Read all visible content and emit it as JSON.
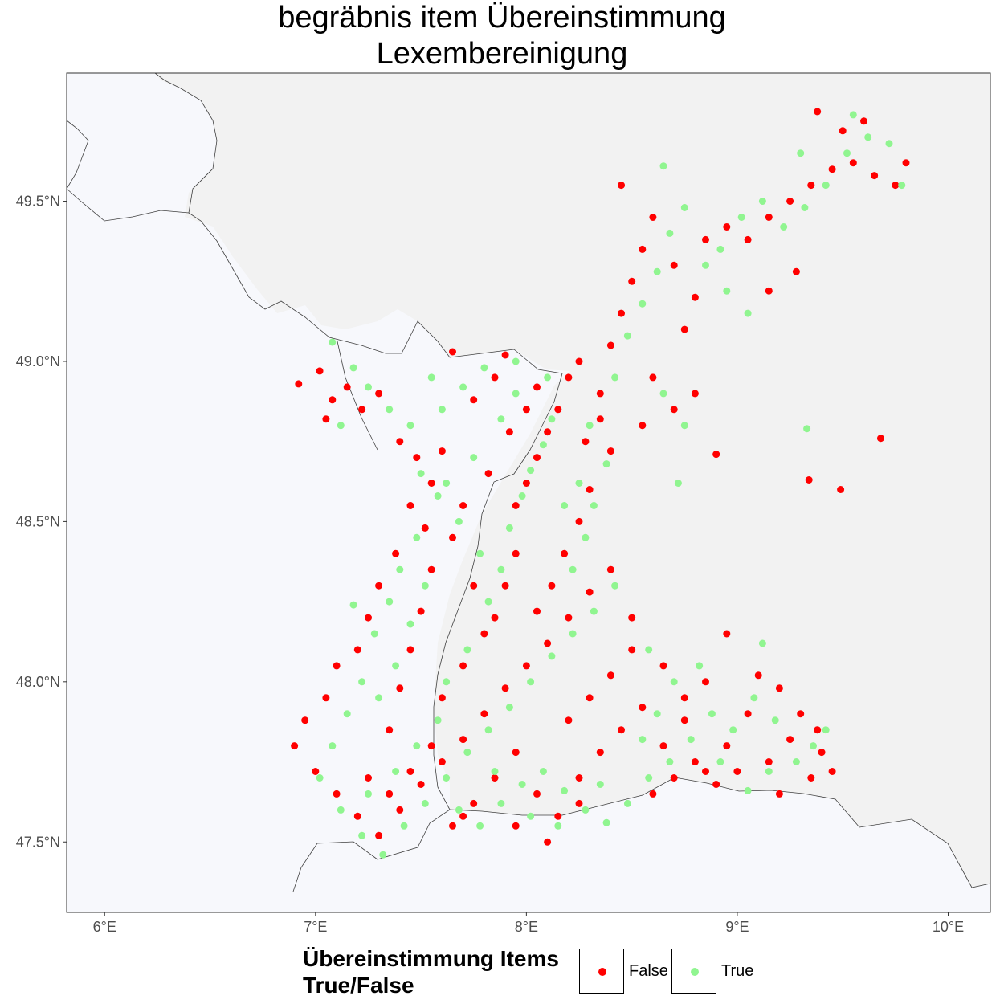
{
  "title_line1": "begräbnis item Übereinstimmung",
  "title_line2": "Lexembereinigung",
  "colors": {
    "sea_land": "#f7f8fc",
    "gray_area": "#f2f2f2",
    "border": "#404040",
    "false": "#ff0000",
    "true": "#90f590"
  },
  "legend": {
    "title_line1": "Übereinstimmung Items",
    "title_line2": "True/False",
    "false_label": "False",
    "true_label": "True"
  },
  "chart_data": {
    "type": "scatter",
    "xlim": [
      5.82,
      10.2
    ],
    "ylim": [
      47.28,
      49.9
    ],
    "x_ticks": [
      {
        "value": 6,
        "label": "6°E"
      },
      {
        "value": 7,
        "label": "7°E"
      },
      {
        "value": 8,
        "label": "8°E"
      },
      {
        "value": 9,
        "label": "9°E"
      },
      {
        "value": 10,
        "label": "10°E"
      }
    ],
    "y_ticks": [
      {
        "value": 47.5,
        "label": "47.5°N"
      },
      {
        "value": 48.0,
        "label": "48.0°N"
      },
      {
        "value": 48.5,
        "label": "48.5°N"
      },
      {
        "value": 49.0,
        "label": "49.0°N"
      },
      {
        "value": 49.5,
        "label": "49.5°N"
      }
    ],
    "series": [
      {
        "name": "False",
        "color": "#ff0000",
        "points": [
          [
            6.92,
            48.93
          ],
          [
            7.02,
            48.97
          ],
          [
            7.08,
            48.88
          ],
          [
            7.15,
            48.92
          ],
          [
            7.22,
            48.85
          ],
          [
            7.3,
            48.9
          ],
          [
            7.05,
            48.82
          ],
          [
            7.4,
            48.75
          ],
          [
            7.48,
            48.7
          ],
          [
            7.55,
            48.62
          ],
          [
            7.6,
            48.72
          ],
          [
            7.45,
            48.55
          ],
          [
            7.52,
            48.48
          ],
          [
            7.38,
            48.4
          ],
          [
            7.3,
            48.3
          ],
          [
            7.25,
            48.2
          ],
          [
            7.2,
            48.1
          ],
          [
            7.1,
            48.05
          ],
          [
            7.05,
            47.95
          ],
          [
            6.95,
            47.88
          ],
          [
            6.9,
            47.8
          ],
          [
            7.0,
            47.72
          ],
          [
            7.1,
            47.65
          ],
          [
            7.2,
            47.58
          ],
          [
            7.3,
            47.52
          ],
          [
            7.4,
            47.6
          ],
          [
            7.5,
            47.68
          ],
          [
            7.6,
            47.75
          ],
          [
            7.7,
            47.82
          ],
          [
            7.8,
            47.9
          ],
          [
            7.9,
            47.98
          ],
          [
            8.0,
            48.05
          ],
          [
            8.1,
            48.12
          ],
          [
            8.2,
            48.2
          ],
          [
            8.3,
            48.28
          ],
          [
            8.4,
            48.35
          ],
          [
            7.65,
            47.55
          ],
          [
            7.75,
            47.62
          ],
          [
            7.85,
            47.7
          ],
          [
            7.95,
            47.78
          ],
          [
            8.05,
            47.65
          ],
          [
            8.15,
            47.58
          ],
          [
            8.25,
            47.7
          ],
          [
            8.35,
            47.78
          ],
          [
            8.45,
            47.85
          ],
          [
            8.55,
            47.92
          ],
          [
            8.65,
            47.8
          ],
          [
            8.75,
            47.88
          ],
          [
            8.85,
            47.72
          ],
          [
            8.95,
            47.8
          ],
          [
            9.05,
            47.9
          ],
          [
            9.15,
            47.75
          ],
          [
            9.25,
            47.82
          ],
          [
            9.35,
            47.7
          ],
          [
            9.4,
            47.78
          ],
          [
            9.3,
            47.9
          ],
          [
            9.2,
            47.98
          ],
          [
            9.1,
            48.02
          ],
          [
            8.95,
            48.15
          ],
          [
            8.5,
            48.1
          ],
          [
            8.4,
            48.02
          ],
          [
            8.3,
            47.95
          ],
          [
            8.2,
            47.88
          ],
          [
            7.95,
            48.4
          ],
          [
            7.9,
            48.3
          ],
          [
            7.85,
            48.2
          ],
          [
            7.95,
            48.55
          ],
          [
            8.0,
            48.62
          ],
          [
            8.05,
            48.7
          ],
          [
            8.1,
            48.78
          ],
          [
            8.15,
            48.85
          ],
          [
            8.2,
            48.95
          ],
          [
            7.85,
            48.95
          ],
          [
            7.75,
            48.88
          ],
          [
            7.65,
            49.03
          ],
          [
            7.9,
            49.02
          ],
          [
            8.05,
            48.92
          ],
          [
            8.35,
            48.82
          ],
          [
            8.4,
            48.72
          ],
          [
            8.3,
            48.6
          ],
          [
            8.25,
            48.5
          ],
          [
            8.18,
            48.4
          ],
          [
            8.12,
            48.3
          ],
          [
            8.05,
            48.22
          ],
          [
            8.25,
            49.0
          ],
          [
            8.4,
            49.05
          ],
          [
            8.45,
            49.15
          ],
          [
            8.5,
            49.25
          ],
          [
            8.55,
            49.35
          ],
          [
            8.6,
            49.45
          ],
          [
            8.45,
            49.55
          ],
          [
            8.7,
            49.3
          ],
          [
            8.8,
            49.2
          ],
          [
            8.75,
            49.1
          ],
          [
            8.85,
            49.38
          ],
          [
            8.95,
            49.42
          ],
          [
            9.05,
            49.38
          ],
          [
            9.15,
            49.45
          ],
          [
            9.25,
            49.5
          ],
          [
            9.35,
            49.55
          ],
          [
            9.45,
            49.6
          ],
          [
            9.55,
            49.62
          ],
          [
            9.65,
            49.58
          ],
          [
            9.75,
            49.55
          ],
          [
            9.8,
            49.62
          ],
          [
            9.6,
            49.75
          ],
          [
            9.5,
            49.72
          ],
          [
            9.38,
            49.78
          ],
          [
            9.28,
            49.28
          ],
          [
            9.15,
            49.22
          ],
          [
            8.8,
            48.9
          ],
          [
            8.9,
            48.71
          ],
          [
            9.68,
            48.76
          ],
          [
            9.34,
            48.63
          ],
          [
            9.49,
            48.6
          ],
          [
            8.6,
            48.95
          ],
          [
            8.7,
            48.85
          ],
          [
            8.55,
            48.8
          ],
          [
            7.25,
            47.7
          ],
          [
            7.35,
            47.65
          ],
          [
            7.45,
            47.72
          ],
          [
            7.55,
            47.8
          ],
          [
            7.6,
            47.95
          ],
          [
            7.7,
            48.05
          ],
          [
            7.8,
            48.15
          ],
          [
            7.75,
            48.3
          ],
          [
            7.65,
            48.45
          ],
          [
            7.7,
            48.55
          ],
          [
            7.55,
            48.35
          ],
          [
            7.5,
            48.22
          ],
          [
            7.45,
            48.1
          ],
          [
            7.4,
            47.98
          ],
          [
            7.35,
            47.85
          ],
          [
            8.6,
            47.65
          ],
          [
            8.7,
            47.7
          ],
          [
            8.8,
            47.75
          ],
          [
            8.9,
            47.68
          ],
          [
            9.0,
            47.72
          ],
          [
            9.2,
            47.65
          ],
          [
            7.95,
            47.55
          ],
          [
            8.1,
            47.5
          ],
          [
            7.7,
            47.58
          ],
          [
            8.25,
            47.62
          ],
          [
            8.5,
            48.2
          ],
          [
            8.65,
            48.05
          ],
          [
            8.75,
            47.95
          ],
          [
            8.85,
            48.0
          ],
          [
            9.45,
            47.72
          ],
          [
            9.38,
            47.85
          ],
          [
            8.28,
            48.75
          ],
          [
            8.35,
            48.9
          ],
          [
            8.0,
            48.85
          ],
          [
            7.92,
            48.78
          ],
          [
            7.82,
            48.65
          ]
        ]
      },
      {
        "name": "True",
        "color": "#90f590",
        "points": [
          [
            7.08,
            49.06
          ],
          [
            7.18,
            48.98
          ],
          [
            7.25,
            48.92
          ],
          [
            7.12,
            48.8
          ],
          [
            7.35,
            48.85
          ],
          [
            7.45,
            48.8
          ],
          [
            7.5,
            48.65
          ],
          [
            7.58,
            48.58
          ],
          [
            7.48,
            48.45
          ],
          [
            7.4,
            48.35
          ],
          [
            7.35,
            48.25
          ],
          [
            7.28,
            48.15
          ],
          [
            7.22,
            48.0
          ],
          [
            7.15,
            47.9
          ],
          [
            7.08,
            47.8
          ],
          [
            7.02,
            47.7
          ],
          [
            7.12,
            47.6
          ],
          [
            7.22,
            47.52
          ],
          [
            7.32,
            47.46
          ],
          [
            7.42,
            47.55
          ],
          [
            7.52,
            47.62
          ],
          [
            7.62,
            47.7
          ],
          [
            7.72,
            47.78
          ],
          [
            7.82,
            47.85
          ],
          [
            7.92,
            47.92
          ],
          [
            8.02,
            48.0
          ],
          [
            8.12,
            48.08
          ],
          [
            8.22,
            48.15
          ],
          [
            8.32,
            48.22
          ],
          [
            8.42,
            48.3
          ],
          [
            7.68,
            47.6
          ],
          [
            7.78,
            47.55
          ],
          [
            7.88,
            47.62
          ],
          [
            7.98,
            47.68
          ],
          [
            8.08,
            47.72
          ],
          [
            8.18,
            47.66
          ],
          [
            8.28,
            47.6
          ],
          [
            8.38,
            47.56
          ],
          [
            8.48,
            47.62
          ],
          [
            8.58,
            47.7
          ],
          [
            8.68,
            47.75
          ],
          [
            8.78,
            47.82
          ],
          [
            8.88,
            47.9
          ],
          [
            8.98,
            47.85
          ],
          [
            9.08,
            47.95
          ],
          [
            9.18,
            47.88
          ],
          [
            9.28,
            47.75
          ],
          [
            9.36,
            47.8
          ],
          [
            9.12,
            48.12
          ],
          [
            7.88,
            48.35
          ],
          [
            7.82,
            48.25
          ],
          [
            7.92,
            48.48
          ],
          [
            7.98,
            48.58
          ],
          [
            8.02,
            48.66
          ],
          [
            8.08,
            48.74
          ],
          [
            8.12,
            48.82
          ],
          [
            7.8,
            48.98
          ],
          [
            7.7,
            48.92
          ],
          [
            7.6,
            48.85
          ],
          [
            7.55,
            48.95
          ],
          [
            7.95,
            49.0
          ],
          [
            8.1,
            48.95
          ],
          [
            8.3,
            48.8
          ],
          [
            8.38,
            48.68
          ],
          [
            8.32,
            48.55
          ],
          [
            8.28,
            48.45
          ],
          [
            8.22,
            48.35
          ],
          [
            8.42,
            48.95
          ],
          [
            8.48,
            49.08
          ],
          [
            8.55,
            49.18
          ],
          [
            8.62,
            49.28
          ],
          [
            8.68,
            49.4
          ],
          [
            8.65,
            49.61
          ],
          [
            8.75,
            49.48
          ],
          [
            8.85,
            49.3
          ],
          [
            8.92,
            49.35
          ],
          [
            9.02,
            49.45
          ],
          [
            9.12,
            49.5
          ],
          [
            9.22,
            49.42
          ],
          [
            9.32,
            49.48
          ],
          [
            9.42,
            49.55
          ],
          [
            9.52,
            49.65
          ],
          [
            9.62,
            49.7
          ],
          [
            9.72,
            49.68
          ],
          [
            9.78,
            49.55
          ],
          [
            9.55,
            49.77
          ],
          [
            9.3,
            49.65
          ],
          [
            9.05,
            49.15
          ],
          [
            8.95,
            49.22
          ],
          [
            8.75,
            48.8
          ],
          [
            8.72,
            48.62
          ],
          [
            9.33,
            48.79
          ],
          [
            8.65,
            48.9
          ],
          [
            7.18,
            48.24
          ],
          [
            7.25,
            47.65
          ],
          [
            7.38,
            47.72
          ],
          [
            7.48,
            47.8
          ],
          [
            7.58,
            47.88
          ],
          [
            7.62,
            48.0
          ],
          [
            7.72,
            48.1
          ],
          [
            7.78,
            48.4
          ],
          [
            7.68,
            48.5
          ],
          [
            7.62,
            48.62
          ],
          [
            7.52,
            48.3
          ],
          [
            7.45,
            48.18
          ],
          [
            7.38,
            48.05
          ],
          [
            7.3,
            47.95
          ],
          [
            8.55,
            47.82
          ],
          [
            8.62,
            47.9
          ],
          [
            8.92,
            47.75
          ],
          [
            9.05,
            47.66
          ],
          [
            9.15,
            47.72
          ],
          [
            8.02,
            47.58
          ],
          [
            8.15,
            47.55
          ],
          [
            7.85,
            47.72
          ],
          [
            8.35,
            47.68
          ],
          [
            8.58,
            48.1
          ],
          [
            8.7,
            48.0
          ],
          [
            8.82,
            48.05
          ],
          [
            9.42,
            47.85
          ],
          [
            8.25,
            48.62
          ],
          [
            8.18,
            48.55
          ],
          [
            7.95,
            48.9
          ],
          [
            7.88,
            48.82
          ],
          [
            7.75,
            48.7
          ]
        ]
      }
    ]
  }
}
